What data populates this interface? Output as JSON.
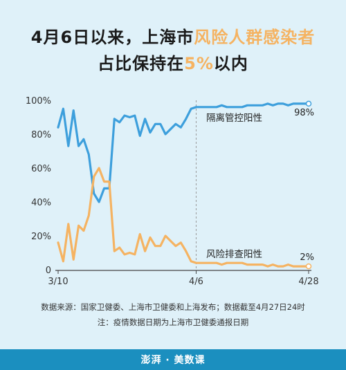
{
  "title": {
    "line1_a": "4月6日以来，上海市",
    "line1_b": "风险人群感染者",
    "line2_a": "占比保持在",
    "line2_b": "5%",
    "line2_c": "以内"
  },
  "source": {
    "line1": "数据来源：国家卫健委、上海市卫健委和上海发布；数据截至4月27日24时",
    "line2": "注：疫情数据日期为上海市卫健委通报日期"
  },
  "logo": {
    "text_a": "澎湃",
    "text_b": "美数课"
  },
  "colors": {
    "background": "#dff1f9",
    "blue_series": "#3d9fdc",
    "orange_series": "#f5b362",
    "axis": "#444444",
    "dashed": "#999999"
  },
  "chart_data": {
    "type": "line",
    "x": [
      "3/10",
      "3/11",
      "3/12",
      "3/13",
      "3/14",
      "3/15",
      "3/16",
      "3/17",
      "3/18",
      "3/19",
      "3/20",
      "3/21",
      "3/22",
      "3/23",
      "3/24",
      "3/25",
      "3/26",
      "3/27",
      "3/28",
      "3/29",
      "3/30",
      "3/31",
      "4/1",
      "4/2",
      "4/3",
      "4/4",
      "4/5",
      "4/6",
      "4/7",
      "4/8",
      "4/9",
      "4/10",
      "4/11",
      "4/12",
      "4/13",
      "4/14",
      "4/15",
      "4/16",
      "4/17",
      "4/18",
      "4/19",
      "4/20",
      "4/21",
      "4/22",
      "4/23",
      "4/24",
      "4/25",
      "4/26",
      "4/27",
      "4/28"
    ],
    "x_tick_labels": [
      "3/10",
      "4/6",
      "4/28"
    ],
    "y_tick_labels": [
      "0",
      "20%",
      "40%",
      "60%",
      "80%",
      "100%"
    ],
    "ylim": [
      0,
      100
    ],
    "reference_line_x": "4/6",
    "series": [
      {
        "name": "隔离管控阳性",
        "color": "#3d9fdc",
        "end_label": "98%",
        "values": [
          84,
          95,
          73,
          94,
          73,
          77,
          68,
          45,
          40,
          48,
          48,
          89,
          87,
          91,
          90,
          91,
          79,
          89,
          81,
          86,
          86,
          80,
          83,
          86,
          84,
          89,
          95,
          96,
          96,
          96,
          96,
          96,
          97,
          96,
          96,
          96,
          96,
          97,
          97,
          97,
          97,
          98,
          97,
          98,
          98,
          97,
          98,
          98,
          98,
          98
        ]
      },
      {
        "name": "风险排查阳性",
        "color": "#f5b362",
        "end_label": "2%",
        "values": [
          16,
          5,
          27,
          6,
          26,
          23,
          32,
          55,
          60,
          52,
          52,
          11,
          13,
          9,
          10,
          9,
          21,
          11,
          19,
          14,
          14,
          20,
          17,
          14,
          16,
          11,
          5,
          4,
          4,
          4,
          4,
          4,
          3,
          4,
          4,
          4,
          4,
          3,
          3,
          3,
          3,
          2,
          3,
          2,
          2,
          3,
          2,
          2,
          2,
          2
        ]
      }
    ]
  }
}
